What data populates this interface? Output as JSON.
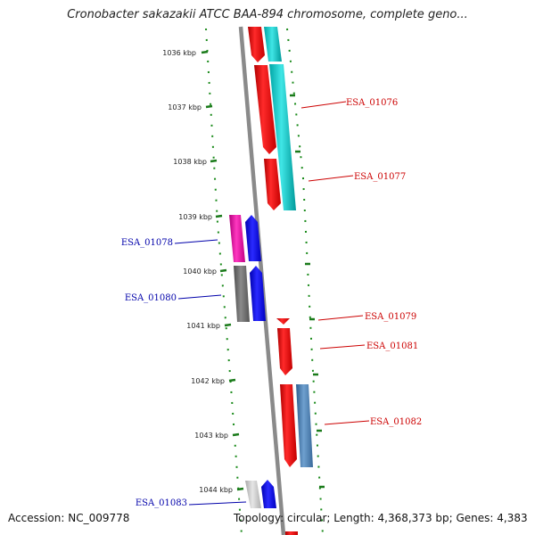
{
  "header": {
    "title": "Cronobacter sakazakii ATCC BAA-894 chromosome, complete geno..."
  },
  "footer": {
    "accession": "Accession: NC_009778",
    "summary": "Topology: circular; Length: 4,368,373 bp; Genes: 4,383"
  },
  "colors": {
    "backbone": "#888888",
    "tick": "#1a7a1a",
    "reverse_label": "#cc0000",
    "forward_label": "#0000aa",
    "red": "#ff0000",
    "cyan": "#00c8c8",
    "blue": "#0000ff",
    "magenta": "#e0009a",
    "dark_gray": "#6e6e6e",
    "steel_blue": "#4a7fb0",
    "light_gray": "#c8c8c8"
  },
  "ticks": [
    "1036 kbp",
    "1037 kbp",
    "1038 kbp",
    "1039 kbp",
    "1040 kbp",
    "1041 kbp",
    "1042 kbp",
    "1043 kbp",
    "1044 kbp"
  ],
  "labels": {
    "right": [
      "ESA_01076",
      "ESA_01077",
      "ESA_01079",
      "ESA_01081",
      "ESA_01082"
    ],
    "left": [
      "ESA_01078",
      "ESA_01080",
      "ESA_01083"
    ]
  }
}
